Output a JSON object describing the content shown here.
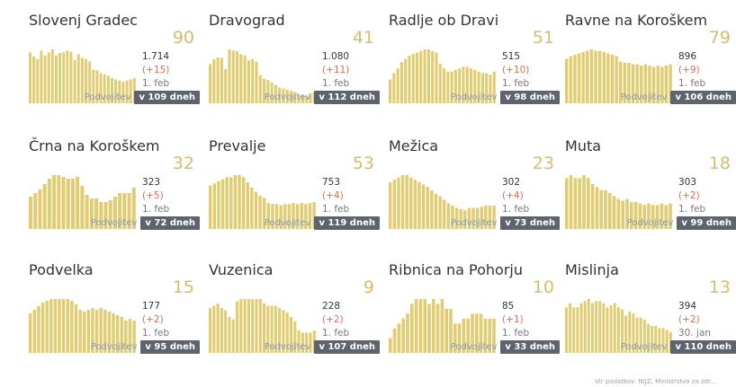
{
  "palette": {
    "bar": "#e2cc72",
    "big_number": "#d6bd6b",
    "delta": "#e06b54",
    "badge_bg": "#5d6470",
    "label": "#8a9bb0"
  },
  "doubling_label": "Podvojitev",
  "footer": "Vir podatkov: NIJZ, Ministrstvo za zdr...",
  "chart_data": [
    {
      "type": "bar",
      "title": "Slovenj Gradec",
      "active": "90",
      "total": "1.714",
      "delta": "(+15)",
      "date": "1. feb",
      "doubling": "v 109 dneh",
      "values": [
        85,
        78,
        74,
        88,
        80,
        85,
        90,
        80,
        84,
        85,
        88,
        86,
        72,
        82,
        76,
        74,
        70,
        56,
        55,
        50,
        48,
        46,
        42,
        40,
        38,
        36,
        38,
        40,
        42
      ]
    },
    {
      "type": "bar",
      "title": "Dravograd",
      "active": "41",
      "total": "1.080",
      "delta": "(+11)",
      "date": "1. feb",
      "doubling": "v 112 dneh",
      "values": [
        64,
        72,
        75,
        74,
        56,
        88,
        86,
        85,
        80,
        78,
        70,
        72,
        68,
        46,
        40,
        38,
        34,
        30,
        26,
        24,
        22,
        20,
        18,
        14,
        14,
        12,
        16,
        18
      ]
    },
    {
      "type": "bar",
      "title": "Radlje ob Dravi",
      "active": "51",
      "total": "515",
      "delta": "(+10)",
      "date": "1. feb",
      "doubling": "v 98 dneh",
      "values": [
        30,
        38,
        44,
        52,
        56,
        60,
        62,
        64,
        66,
        68,
        68,
        66,
        64,
        50,
        44,
        40,
        40,
        42,
        44,
        46,
        46,
        44,
        42,
        40,
        38,
        38,
        36,
        40
      ]
    },
    {
      "type": "bar",
      "title": "Ravne na Koroškem",
      "active": "79",
      "total": "896",
      "delta": "(+9)",
      "date": "1. feb",
      "doubling": "v 106 dneh",
      "values": [
        66,
        70,
        72,
        74,
        76,
        78,
        80,
        78,
        78,
        76,
        74,
        72,
        70,
        62,
        60,
        60,
        58,
        58,
        56,
        58,
        56,
        54,
        56,
        54,
        56,
        58
      ]
    },
    {
      "type": "bar",
      "title": "Črna na Koroškem",
      "active": "32",
      "total": "323",
      "delta": "(+5)",
      "date": "1. feb",
      "doubling": "v 72 dneh",
      "values": [
        18,
        20,
        22,
        25,
        28,
        30,
        30,
        29,
        28,
        28,
        29,
        24,
        19,
        17,
        17,
        15,
        15,
        16,
        18,
        20,
        20,
        20,
        23
      ]
    },
    {
      "type": "bar",
      "title": "Prevalje",
      "active": "53",
      "total": "753",
      "delta": "(+4)",
      "date": "1. feb",
      "doubling": "v 119 dneh",
      "values": [
        42,
        44,
        46,
        48,
        50,
        50,
        52,
        52,
        50,
        45,
        40,
        36,
        32,
        30,
        25,
        24,
        24,
        23,
        24,
        24,
        25,
        24,
        25,
        24,
        25,
        26
      ]
    },
    {
      "type": "bar",
      "title": "Mežica",
      "active": "23",
      "total": "302",
      "delta": "(+4)",
      "date": "1. feb",
      "doubling": "v 73 dneh",
      "values": [
        40,
        42,
        44,
        46,
        46,
        44,
        42,
        40,
        38,
        36,
        33,
        30,
        28,
        25,
        22,
        20,
        18,
        17,
        16,
        18,
        18,
        18,
        19,
        20,
        20,
        20
      ]
    },
    {
      "type": "bar",
      "title": "Muta",
      "active": "18",
      "total": "303",
      "delta": "(+2)",
      "date": "1. feb",
      "doubling": "v 99 dneh",
      "values": [
        34,
        36,
        34,
        34,
        36,
        34,
        30,
        28,
        26,
        26,
        24,
        22,
        20,
        19,
        20,
        18,
        18,
        17,
        16,
        17,
        16,
        16,
        17,
        16,
        17
      ]
    },
    {
      "type": "bar",
      "title": "Podvelka",
      "active": "15",
      "total": "177",
      "delta": "(+2)",
      "date": "1. feb",
      "doubling": "v 95 dneh",
      "values": [
        22,
        24,
        26,
        28,
        29,
        30,
        30,
        30,
        30,
        30,
        29,
        27,
        24,
        23,
        24,
        25,
        24,
        25,
        24,
        23,
        22,
        21,
        20,
        18,
        19,
        18
      ]
    },
    {
      "type": "bar",
      "title": "Vuzenica",
      "active": "9",
      "total": "228",
      "delta": "(+2)",
      "date": "1. feb",
      "doubling": "v 107 dneh",
      "values": [
        20,
        21,
        22,
        20,
        19,
        16,
        15,
        23,
        24,
        24,
        24,
        24,
        24,
        24,
        22,
        21,
        21,
        21,
        20,
        19,
        18,
        16,
        14,
        10,
        9,
        9,
        9,
        10
      ]
    },
    {
      "type": "bar",
      "title": "Ribnica na Pohorju",
      "active": "10",
      "total": "85",
      "delta": "(+1)",
      "date": "1. feb",
      "doubling": "v 33 dneh",
      "values": [
        3,
        5,
        6,
        7,
        8,
        10,
        11,
        11,
        11,
        10,
        11,
        10,
        11,
        9,
        9,
        6,
        6,
        7,
        7,
        8,
        8,
        8,
        7,
        7,
        7
      ]
    },
    {
      "type": "bar",
      "title": "Mislinja",
      "active": "13",
      "total": "394",
      "delta": "(+2)",
      "date": "30. jan",
      "doubling": "v 110 dneh",
      "values": [
        22,
        24,
        22,
        22,
        24,
        25,
        26,
        24,
        25,
        25,
        24,
        22,
        23,
        24,
        22,
        21,
        18,
        20,
        19,
        17,
        17,
        16,
        14,
        13,
        13,
        12,
        12,
        11,
        10
      ]
    }
  ]
}
